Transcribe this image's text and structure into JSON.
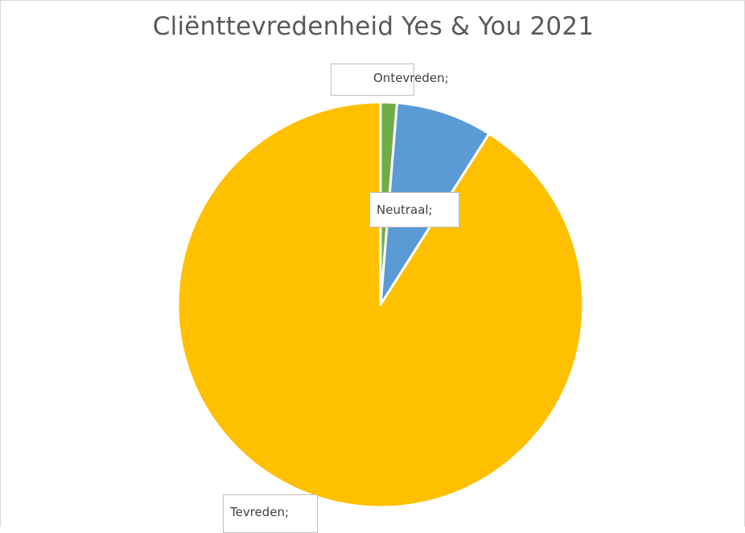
{
  "chart_data": {
    "type": "pie",
    "title": "Cliënttevredenheid Yes & You 2021",
    "categories": [
      "Ontevreden",
      "Neutraal",
      "Tevreden"
    ],
    "values": [
      1.3,
      7.7,
      91.0
    ],
    "unit": "%",
    "colors": [
      "#70ad47",
      "#5b9bd5",
      "#ffc000"
    ],
    "slice_border_color": "#ffffff",
    "labels": [
      "Ontevreden;",
      "Neutraal;",
      "Tevreden;"
    ],
    "start_angle_deg": 0,
    "direction": "clockwise",
    "legend": "none"
  }
}
